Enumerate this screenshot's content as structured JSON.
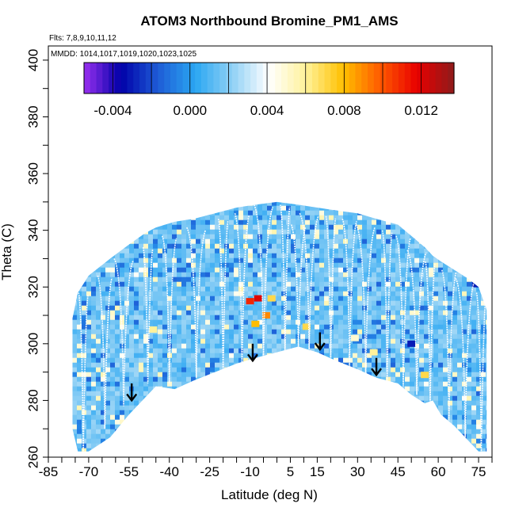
{
  "chart_data": {
    "type": "heatmap",
    "title": "ATOM3 Northbound Bromine_PM1_AMS",
    "flights_note": "Flts: 7,8,9,10,11,12",
    "dates_note": "MMDD: 1014,1017,1019,1020,1023,1025",
    "xlabel": "Latitude (deg N)",
    "ylabel": "Theta (C)",
    "xlim": [
      -85,
      80
    ],
    "ylim": [
      260,
      405
    ],
    "x_tick_labels": [
      -85,
      -70,
      -55,
      -40,
      -25,
      -10,
      5,
      15,
      30,
      45,
      60,
      75
    ],
    "y_tick_labels": [
      260,
      280,
      300,
      320,
      340,
      360,
      380,
      400
    ],
    "colorbar": {
      "range": [
        -0.0055,
        0.0137
      ],
      "tick_values": [
        -0.004,
        0.0,
        0.004,
        0.008,
        0.012
      ],
      "tick_labels": [
        "-0.004",
        "0.000",
        "0.004",
        "0.008",
        "0.012"
      ],
      "colors": [
        "#9a30f0",
        "#0000a8",
        "#1e5cd6",
        "#2aa6f2",
        "#8fd0f5",
        "#ffffff",
        "#fff29a",
        "#ffc000",
        "#ff5a00",
        "#e80000",
        "#8e1b1b"
      ]
    },
    "coverage_envelope": {
      "lat": [
        -76,
        -74,
        -70,
        -62,
        -55,
        -49,
        -45,
        -38,
        -31,
        -23,
        -15,
        -8,
        0,
        8,
        15,
        22,
        30,
        37,
        45,
        50,
        55,
        58,
        61,
        66,
        71,
        75,
        78
      ],
      "theta_top": [
        309,
        318,
        324,
        330,
        335,
        339,
        341,
        343,
        344,
        346,
        348,
        349,
        350,
        349,
        348,
        347,
        346,
        344,
        342,
        338,
        334,
        331,
        329,
        326,
        323,
        320,
        312
      ],
      "theta_bottom": [
        270,
        262,
        262,
        267,
        275,
        281,
        285,
        284,
        287,
        290,
        293,
        295,
        297,
        299,
        297,
        294,
        291,
        288,
        286,
        282,
        279,
        280,
        275,
        271,
        266,
        262,
        262
      ]
    },
    "hotspots": [
      {
        "lat": -7,
        "theta": 316,
        "value": 0.012
      },
      {
        "lat": -10,
        "theta": 315,
        "value": 0.011
      },
      {
        "lat": -4,
        "theta": 310,
        "value": 0.009
      },
      {
        "lat": -8,
        "theta": 307,
        "value": 0.008
      },
      {
        "lat": -2,
        "theta": 316,
        "value": 0.007
      },
      {
        "lat": 11,
        "theta": 306,
        "value": 0.007
      },
      {
        "lat": 36,
        "theta": 297,
        "value": 0.006
      },
      {
        "lat": 55,
        "theta": 289,
        "value": 0.007
      },
      {
        "lat": -46,
        "theta": 305,
        "value": 0.006
      },
      {
        "lat": 29,
        "theta": 302,
        "value": 0.005
      },
      {
        "lat": 50,
        "theta": 300,
        "value": -0.003
      },
      {
        "lat": 74,
        "theta": 321,
        "value": -0.003
      }
    ],
    "arrows": [
      {
        "lat": -54,
        "theta_tip": 280,
        "theta_tail": 286
      },
      {
        "lat": -9,
        "theta_tip": 294,
        "theta_tail": 300
      },
      {
        "lat": 16,
        "theta_tip": 298,
        "theta_tail": 304
      },
      {
        "lat": 37,
        "theta_tip": 289,
        "theta_tail": 295
      }
    ],
    "profile_sets": [
      {
        "lat": -72,
        "theta_low": 262,
        "theta_high": 318
      },
      {
        "lat": -64,
        "theta_low": 270,
        "theta_high": 324
      },
      {
        "lat": -57,
        "theta_low": 278,
        "theta_high": 330
      },
      {
        "lat": -48,
        "theta_low": 286,
        "theta_high": 334
      },
      {
        "lat": -40,
        "theta_low": 286,
        "theta_high": 338
      },
      {
        "lat": -30,
        "theta_low": 288,
        "theta_high": 341
      },
      {
        "lat": -20,
        "theta_low": 291,
        "theta_high": 344
      },
      {
        "lat": -13,
        "theta_low": 293,
        "theta_high": 346
      },
      {
        "lat": -5,
        "theta_low": 295,
        "theta_high": 349
      },
      {
        "lat": 3,
        "theta_low": 297,
        "theta_high": 349
      },
      {
        "lat": 8,
        "theta_low": 299,
        "theta_high": 342
      },
      {
        "lat": 12,
        "theta_low": 298,
        "theta_high": 346
      },
      {
        "lat": 20,
        "theta_low": 295,
        "theta_high": 345
      },
      {
        "lat": 27,
        "theta_low": 292,
        "theta_high": 344
      },
      {
        "lat": 33,
        "theta_low": 289,
        "theta_high": 342
      },
      {
        "lat": 41,
        "theta_low": 287,
        "theta_high": 340
      },
      {
        "lat": 47,
        "theta_low": 285,
        "theta_high": 338
      },
      {
        "lat": 52,
        "theta_low": 282,
        "theta_high": 333
      },
      {
        "lat": 57,
        "theta_low": 279,
        "theta_high": 329
      },
      {
        "lat": 64,
        "theta_low": 273,
        "theta_high": 326
      },
      {
        "lat": 70,
        "theta_low": 267,
        "theta_high": 323
      },
      {
        "lat": 76,
        "theta_low": 262,
        "theta_high": 318
      }
    ]
  }
}
